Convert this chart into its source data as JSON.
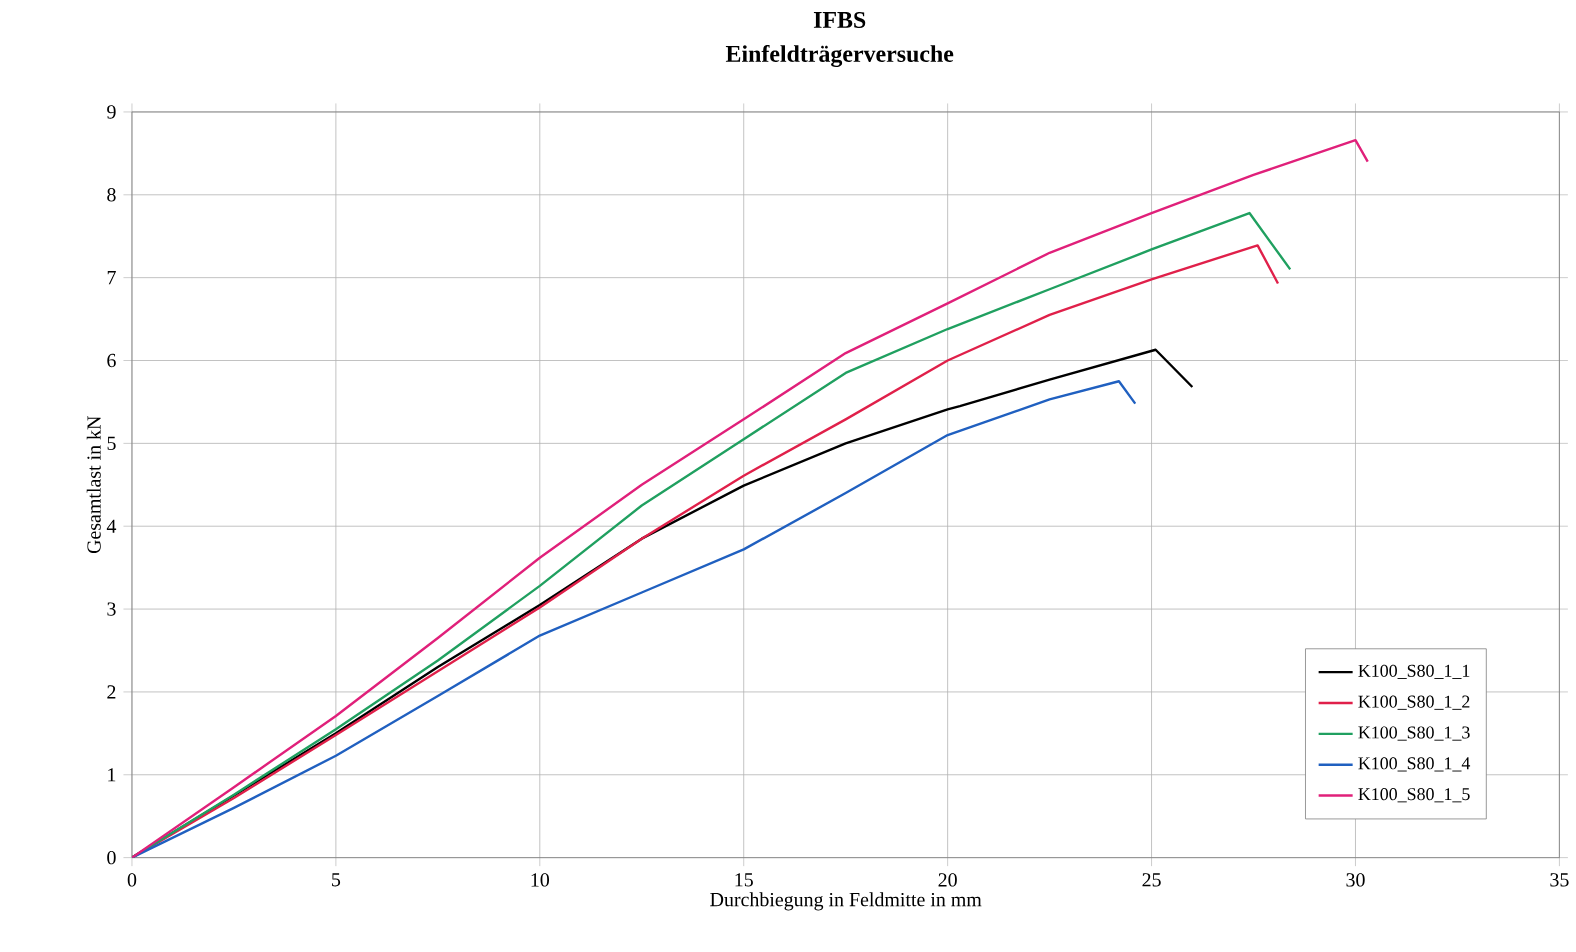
{
  "chart_data": {
    "type": "line",
    "title": "IFBS",
    "subtitle": "Einfeldträgerversuche",
    "xlabel": "Durchbiegung in Feldmitte in mm",
    "ylabel": "Gesamtlast in kN",
    "xlim": [
      0,
      35
    ],
    "ylim": [
      0,
      9
    ],
    "xticks": [
      0,
      5,
      10,
      15,
      20,
      25,
      30,
      35
    ],
    "yticks": [
      0,
      1,
      2,
      3,
      4,
      5,
      6,
      7,
      8,
      9
    ],
    "grid": true,
    "legend": "bottom right",
    "marker": "none",
    "line_style": "solid",
    "series": [
      {
        "name": "K100_S80_1_1",
        "color": "#000000",
        "x": [
          0,
          2.5,
          5,
          7.5,
          10,
          12.5,
          15,
          17.5,
          20,
          20.3,
          22.5,
          25.1,
          26.0
        ],
        "values": [
          0,
          0.75,
          1.5,
          2.3,
          3.05,
          3.85,
          4.49,
          5.0,
          5.41,
          5.45,
          5.77,
          6.13,
          5.68
        ]
      },
      {
        "name": "K100_S80_1_2",
        "color": "#e0204a",
        "x": [
          0,
          2.5,
          5,
          7.5,
          10,
          12.5,
          15,
          17.5,
          20,
          22.5,
          25,
          27.6,
          28.1
        ],
        "values": [
          0,
          0.72,
          1.48,
          2.25,
          3.02,
          3.85,
          4.61,
          5.29,
          6.0,
          6.55,
          6.98,
          7.39,
          6.93
        ]
      },
      {
        "name": "K100_S80_1_3",
        "color": "#20a060",
        "x": [
          0,
          2.5,
          5,
          7.5,
          10,
          12.5,
          15,
          17.5,
          20,
          22.5,
          25,
          27.4,
          28.4
        ],
        "values": [
          0,
          0.76,
          1.55,
          2.38,
          3.28,
          4.25,
          5.05,
          5.85,
          6.38,
          6.86,
          7.34,
          7.78,
          7.1
        ]
      },
      {
        "name": "K100_S80_1_4",
        "color": "#2060c0",
        "x": [
          0,
          2.5,
          5,
          7.5,
          10,
          12.5,
          15,
          17.5,
          20,
          22.5,
          24.2,
          24.6
        ],
        "values": [
          0,
          0.6,
          1.23,
          1.95,
          2.68,
          3.2,
          3.72,
          4.4,
          5.1,
          5.53,
          5.75,
          5.48
        ]
      },
      {
        "name": "K100_S80_1_5",
        "color": "#e0207a",
        "x": [
          0,
          2.5,
          5,
          7.5,
          10,
          12.5,
          15,
          17.5,
          20,
          22.5,
          25,
          27.5,
          30.0,
          30.3
        ],
        "values": [
          0,
          0.85,
          1.71,
          2.65,
          3.62,
          4.5,
          5.29,
          6.09,
          6.69,
          7.3,
          7.78,
          8.24,
          8.66,
          8.4
        ]
      }
    ]
  }
}
